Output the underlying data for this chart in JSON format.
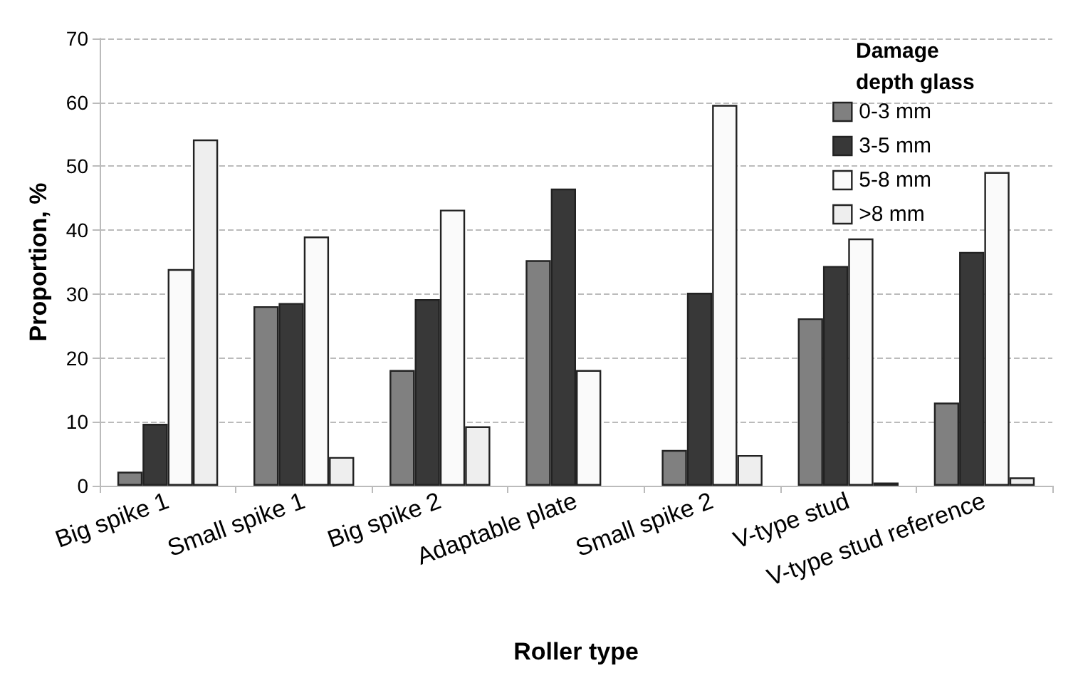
{
  "chart_data": {
    "type": "bar",
    "xlabel": "Roller type",
    "ylabel": "Proportion, %",
    "legend_title": "Damage depth glass",
    "categories": [
      "Big spike 1",
      "Small spike 1",
      "Big spike 2",
      "Adaptable plate",
      "Small spike 2",
      "V-type stud",
      "V-type stud reference"
    ],
    "series": [
      {
        "name": "0-3 mm",
        "color": "#808080",
        "values": [
          2.2,
          28.1,
          18.1,
          35.3,
          5.6,
          26.2,
          13.0
        ]
      },
      {
        "name": "3-5 mm",
        "color": "#383838",
        "values": [
          9.7,
          28.6,
          29.2,
          46.5,
          30.2,
          34.4,
          36.6
        ]
      },
      {
        "name": "5-8 mm",
        "color": "#fafafa",
        "values": [
          33.9,
          39.0,
          43.2,
          18.1,
          59.6,
          38.7,
          49.1
        ]
      },
      {
        "name": ">8 mm",
        "color": "#eeeeee",
        "values": [
          54.2,
          4.5,
          9.3,
          null,
          4.8,
          0.5,
          1.3
        ]
      }
    ],
    "ylim": [
      0,
      70
    ],
    "yticks": [
      0,
      10,
      20,
      30,
      40,
      50,
      60,
      70
    ],
    "grid": "y",
    "legend": "top right"
  }
}
